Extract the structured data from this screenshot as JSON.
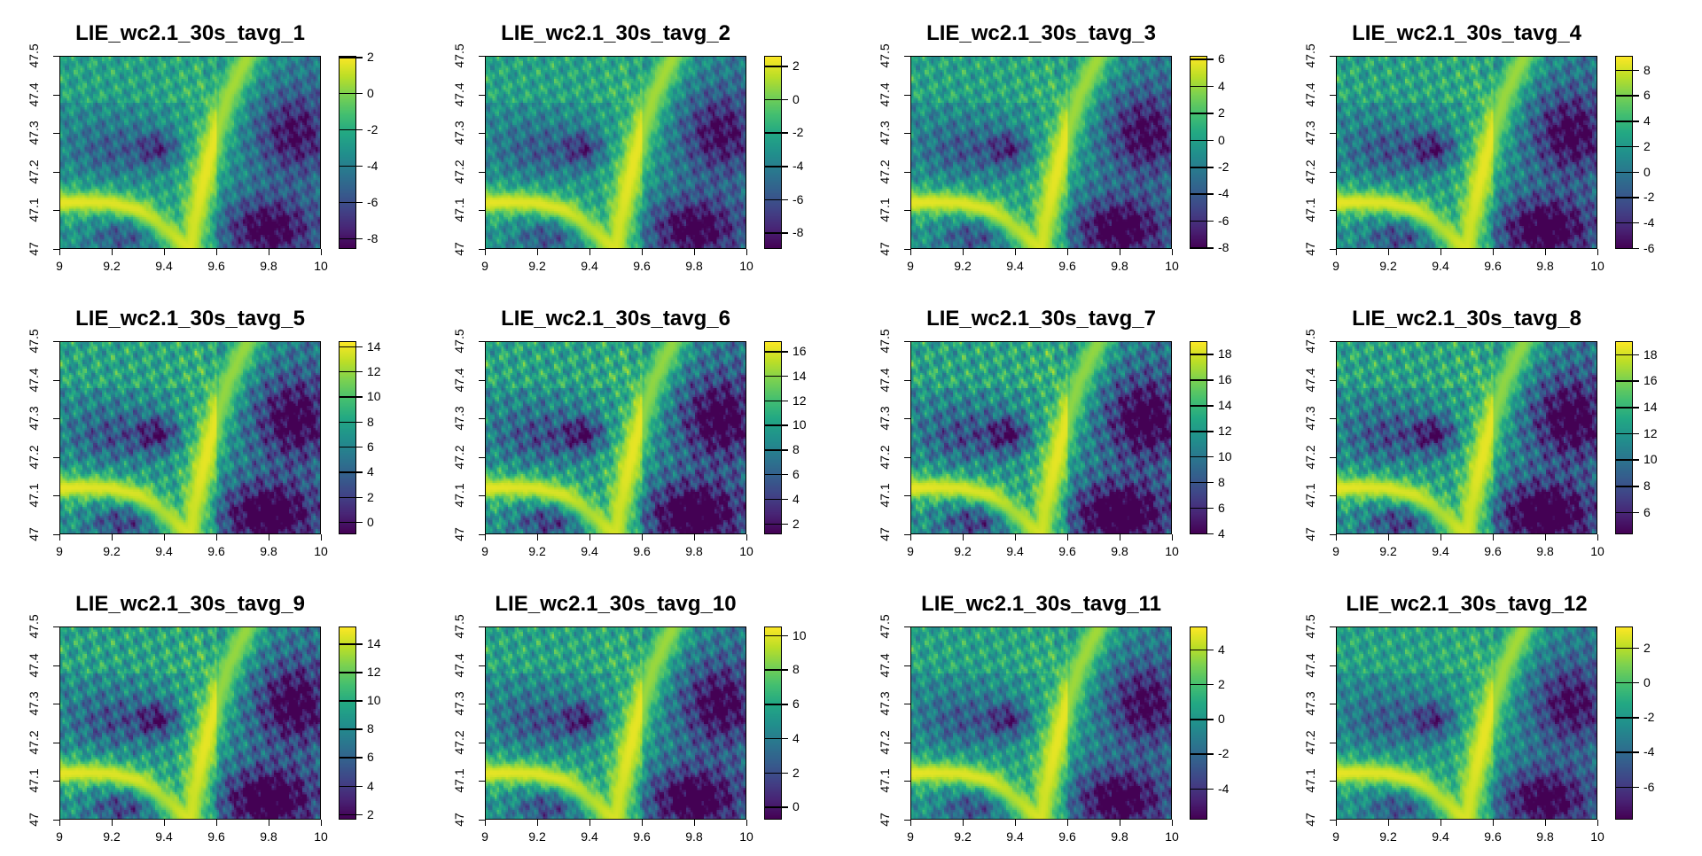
{
  "chart_data": {
    "type": "heatmap",
    "colormap": "viridis",
    "layout": "3 rows x 4 columns",
    "x_ticks": [
      "9",
      "9.2",
      "9.4",
      "9.6",
      "9.8",
      "10"
    ],
    "y_ticks": [
      "47",
      "47.1",
      "47.2",
      "47.3",
      "47.4",
      "47.5"
    ],
    "xlim": [
      9,
      10
    ],
    "ylim": [
      47,
      47.5
    ],
    "panels": [
      {
        "title": "LIE_wc2.1_30s_tavg_1",
        "range": [
          -8.6,
          2.05
        ],
        "legend_ticks": [
          "-8",
          "-6",
          "-4",
          "-2",
          "0",
          "2"
        ]
      },
      {
        "title": "LIE_wc2.1_30s_tavg_2",
        "range": [
          -9.0,
          2.6
        ],
        "legend_ticks": [
          "-8",
          "-6",
          "-4",
          "-2",
          "0",
          "2"
        ]
      },
      {
        "title": "LIE_wc2.1_30s_tavg_3",
        "range": [
          -8.1,
          6.2
        ],
        "legend_ticks": [
          "-8",
          "-6",
          "-4",
          "-2",
          "0",
          "2",
          "4",
          "6"
        ]
      },
      {
        "title": "LIE_wc2.1_30s_tavg_4",
        "range": [
          -6.1,
          9.1
        ],
        "legend_ticks": [
          "-6",
          "-4",
          "-2",
          "0",
          "2",
          "4",
          "6",
          "8"
        ]
      },
      {
        "title": "LIE_wc2.1_30s_tavg_5",
        "range": [
          -1.0,
          14.4
        ],
        "legend_ticks": [
          "0",
          "2",
          "4",
          "6",
          "8",
          "10",
          "12",
          "14"
        ]
      },
      {
        "title": "LIE_wc2.1_30s_tavg_6",
        "range": [
          1.1,
          16.8
        ],
        "legend_ticks": [
          "2",
          "4",
          "6",
          "8",
          "10",
          "12",
          "14",
          "16"
        ]
      },
      {
        "title": "LIE_wc2.1_30s_tavg_7",
        "range": [
          3.9,
          19.0
        ],
        "legend_ticks": [
          "4",
          "6",
          "8",
          "10",
          "12",
          "14",
          "16",
          "18"
        ]
      },
      {
        "title": "LIE_wc2.1_30s_tavg_8",
        "range": [
          4.3,
          19.0
        ],
        "legend_ticks": [
          "6",
          "8",
          "10",
          "12",
          "14",
          "16",
          "18"
        ]
      },
      {
        "title": "LIE_wc2.1_30s_tavg_9",
        "range": [
          1.6,
          15.2
        ],
        "legend_ticks": [
          "2",
          "4",
          "6",
          "8",
          "10",
          "12",
          "14"
        ]
      },
      {
        "title": "LIE_wc2.1_30s_tavg_10",
        "range": [
          -0.75,
          10.5
        ],
        "legend_ticks": [
          "0",
          "2",
          "4",
          "6",
          "8",
          "10"
        ]
      },
      {
        "title": "LIE_wc2.1_30s_tavg_11",
        "range": [
          -5.8,
          5.3
        ],
        "legend_ticks": [
          "-4",
          "-2",
          "0",
          "2",
          "4"
        ]
      },
      {
        "title": "LIE_wc2.1_30s_tavg_12",
        "range": [
          -7.9,
          3.2
        ],
        "legend_ticks": [
          "-6",
          "-4",
          "-2",
          "0",
          "2"
        ]
      }
    ]
  }
}
